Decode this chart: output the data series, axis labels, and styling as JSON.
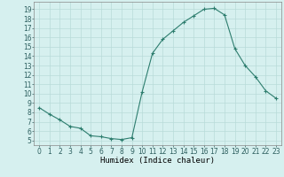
{
  "x": [
    0,
    1,
    2,
    3,
    4,
    5,
    6,
    7,
    8,
    9,
    10,
    11,
    12,
    13,
    14,
    15,
    16,
    17,
    18,
    19,
    20,
    21,
    22,
    23
  ],
  "y": [
    8.5,
    7.8,
    7.2,
    6.5,
    6.3,
    5.5,
    5.4,
    5.2,
    5.1,
    5.3,
    10.2,
    14.3,
    15.8,
    16.7,
    17.6,
    18.3,
    19.0,
    19.1,
    18.4,
    14.8,
    13.0,
    11.8,
    10.3,
    9.5
  ],
  "line_color": "#2d7d6e",
  "marker": "+",
  "marker_size": 3,
  "bg_color": "#d6f0ef",
  "grid_color": "#b8dbd9",
  "xlabel": "Humidex (Indice chaleur)",
  "ylabel_ticks": [
    5,
    6,
    7,
    8,
    9,
    10,
    11,
    12,
    13,
    14,
    15,
    16,
    17,
    18,
    19
  ],
  "xlim": [
    -0.5,
    23.5
  ],
  "ylim": [
    4.5,
    19.8
  ],
  "xticks": [
    0,
    1,
    2,
    3,
    4,
    5,
    6,
    7,
    8,
    9,
    10,
    11,
    12,
    13,
    14,
    15,
    16,
    17,
    18,
    19,
    20,
    21,
    22,
    23
  ],
  "tick_fontsize": 5.5,
  "xlabel_fontsize": 6.5,
  "linewidth": 0.8,
  "markeredgewidth": 0.8
}
